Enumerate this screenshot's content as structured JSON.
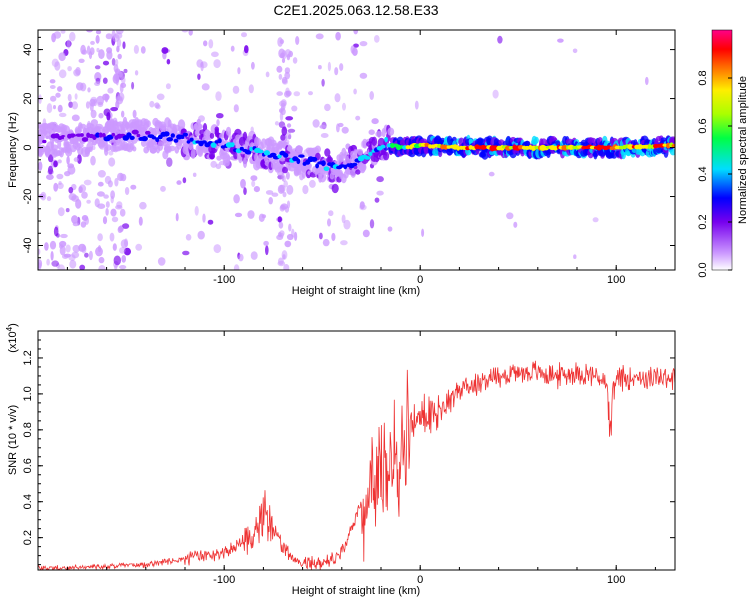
{
  "title": "C2E1.2025.063.12.58.E33",
  "chart_data": [
    {
      "type": "heatmap",
      "title": "C2E1.2025.063.12.58.E33",
      "xlabel": "Height of straight line (km)",
      "ylabel": "Frequency (Hz)",
      "xlim": [
        -195,
        130
      ],
      "ylim": [
        -50,
        48
      ],
      "x_ticks": [
        "-100",
        "0",
        "100"
      ],
      "y_ticks": [
        "-40",
        "-20",
        "0",
        "20",
        "40"
      ],
      "colorbar": {
        "label": "Normalized spectral amplitude",
        "range": [
          0.0,
          1.0
        ],
        "ticks": [
          "0.0",
          "0.2",
          "0.4",
          "0.6",
          "0.8"
        ]
      },
      "ridge": {
        "x": [
          -195,
          -150,
          -120,
          -100,
          -80,
          -60,
          -45,
          -35,
          -25,
          -18,
          -10,
          0,
          20,
          60,
          100,
          130
        ],
        "center_freq": [
          3,
          5,
          4,
          1,
          -2,
          -5,
          -8,
          -7,
          -2,
          2,
          0,
          1,
          0,
          0,
          0,
          1
        ],
        "peak_amplitude": [
          0.2,
          0.35,
          0.45,
          0.5,
          0.45,
          0.4,
          0.45,
          0.5,
          0.5,
          0.6,
          0.75,
          0.85,
          0.95,
          0.95,
          0.95,
          0.95
        ]
      }
    },
    {
      "type": "line",
      "xlabel": "Height of straight line (km)",
      "ylabel": "SNR (10 * v/v)",
      "y_scale_label": "(x10",
      "y_scale_exp": "4",
      "y_scale_close": ")",
      "xlim": [
        -195,
        130
      ],
      "ylim": [
        0.02,
        1.35
      ],
      "x_ticks": [
        "-100",
        "0",
        "100"
      ],
      "y_ticks": [
        "0.2",
        "0.4",
        "0.6",
        "0.8",
        "1.0",
        "1.2"
      ],
      "series": [
        {
          "color": "#ee3333",
          "x": [
            -195,
            -180,
            -160,
            -140,
            -120,
            -110,
            -100,
            -95,
            -90,
            -85,
            -80,
            -75,
            -70,
            -65,
            -60,
            -55,
            -50,
            -45,
            -40,
            -35,
            -30,
            -25,
            -22,
            -20,
            -18,
            -15,
            -12,
            -10,
            -5,
            0,
            5,
            10,
            20,
            30,
            40,
            50,
            60,
            70,
            80,
            90,
            95,
            97,
            100,
            110,
            120,
            130
          ],
          "y": [
            0.03,
            0.03,
            0.04,
            0.05,
            0.08,
            0.1,
            0.12,
            0.14,
            0.18,
            0.25,
            0.33,
            0.26,
            0.14,
            0.09,
            0.07,
            0.06,
            0.06,
            0.08,
            0.12,
            0.25,
            0.4,
            0.45,
            0.55,
            0.6,
            0.55,
            0.6,
            0.65,
            0.7,
            0.8,
            0.88,
            0.85,
            0.92,
            1.02,
            1.07,
            1.1,
            1.12,
            1.12,
            1.1,
            1.12,
            1.1,
            1.05,
            0.9,
            1.08,
            1.1,
            1.08,
            1.1
          ]
        }
      ]
    }
  ]
}
